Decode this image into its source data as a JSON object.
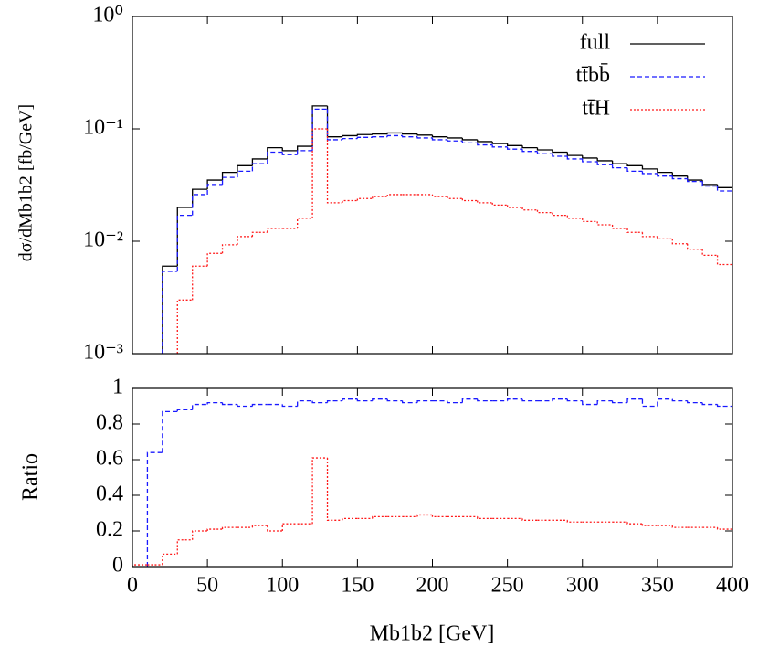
{
  "chart_data": [
    {
      "type": "histogram",
      "ylabel": "dσ/dMb1b2 [fb/GeV]",
      "log_y": true,
      "bins": [
        0,
        10,
        20,
        30,
        40,
        50,
        60,
        70,
        80,
        90,
        100,
        110,
        120,
        130,
        140,
        150,
        160,
        170,
        180,
        190,
        200,
        210,
        220,
        230,
        240,
        250,
        260,
        270,
        280,
        290,
        300,
        310,
        320,
        330,
        340,
        350,
        360,
        370,
        380,
        390,
        400
      ],
      "xlim": [
        0,
        400
      ],
      "ylim": [
        0.001,
        1
      ],
      "yticks": [
        {
          "value": 1,
          "label": "10⁰"
        },
        {
          "value": 0.1,
          "label": "10⁻¹"
        },
        {
          "value": 0.01,
          "label": "10⁻²"
        },
        {
          "value": 0.001,
          "label": "10⁻³"
        }
      ],
      "legend": "upper right",
      "series": [
        {
          "name": "full",
          "color": "#000000",
          "style": "solid",
          "values": [
            null,
            null,
            0.006,
            0.02,
            0.029,
            0.035,
            0.041,
            0.047,
            0.054,
            0.068,
            0.064,
            0.07,
            0.16,
            0.085,
            0.087,
            0.089,
            0.09,
            0.092,
            0.09,
            0.088,
            0.085,
            0.083,
            0.08,
            0.077,
            0.074,
            0.071,
            0.068,
            0.065,
            0.062,
            0.058,
            0.055,
            0.052,
            0.049,
            0.047,
            0.044,
            0.041,
            0.038,
            0.035,
            0.032,
            0.03
          ]
        },
        {
          "name": "tt̄bb̄",
          "color": "#1a1aff",
          "style": "dashed",
          "values": [
            null,
            null,
            0.0054,
            0.017,
            0.026,
            0.032,
            0.037,
            0.042,
            0.049,
            0.062,
            0.059,
            0.064,
            0.15,
            0.08,
            0.082,
            0.084,
            0.085,
            0.087,
            0.085,
            0.083,
            0.08,
            0.078,
            0.075,
            0.072,
            0.069,
            0.066,
            0.063,
            0.06,
            0.057,
            0.054,
            0.051,
            0.048,
            0.045,
            0.042,
            0.04,
            0.038,
            0.036,
            0.034,
            0.031,
            0.028
          ]
        },
        {
          "name": "tt̄H",
          "color": "#ff1a1a",
          "style": "dotted",
          "values": [
            null,
            null,
            null,
            0.003,
            0.006,
            0.0078,
            0.0093,
            0.011,
            0.012,
            0.013,
            0.013,
            0.016,
            0.1,
            0.022,
            0.023,
            0.024,
            0.025,
            0.026,
            0.026,
            0.026,
            0.025,
            0.024,
            0.023,
            0.022,
            0.021,
            0.02,
            0.019,
            0.018,
            0.017,
            0.016,
            0.015,
            0.014,
            0.013,
            0.012,
            0.011,
            0.0105,
            0.0095,
            0.0085,
            0.0075,
            0.0062
          ]
        }
      ]
    },
    {
      "type": "histogram",
      "ylabel": "Ratio",
      "xlabel": "Mb1b2 [GeV]",
      "bins": [
        0,
        10,
        20,
        30,
        40,
        50,
        60,
        70,
        80,
        90,
        100,
        110,
        120,
        130,
        140,
        150,
        160,
        170,
        180,
        190,
        200,
        210,
        220,
        230,
        240,
        250,
        260,
        270,
        280,
        290,
        300,
        310,
        320,
        330,
        340,
        350,
        360,
        370,
        380,
        390,
        400
      ],
      "xlim": [
        0,
        400
      ],
      "ylim": [
        0,
        1
      ],
      "xticks": [
        0,
        50,
        100,
        150,
        200,
        250,
        300,
        350,
        400
      ],
      "yticks": [
        0,
        0.2,
        0.4,
        0.6,
        0.8,
        1
      ],
      "series": [
        {
          "color": "#1a1aff",
          "style": "dashed",
          "values": [
            null,
            0.64,
            0.87,
            0.88,
            0.91,
            0.92,
            0.91,
            0.9,
            0.91,
            0.91,
            0.9,
            0.93,
            0.92,
            0.93,
            0.94,
            0.93,
            0.94,
            0.93,
            0.92,
            0.93,
            0.93,
            0.92,
            0.94,
            0.93,
            0.93,
            0.94,
            0.93,
            0.93,
            0.94,
            0.93,
            0.91,
            0.93,
            0.92,
            0.94,
            0.9,
            0.94,
            0.93,
            0.92,
            0.91,
            0.9
          ]
        },
        {
          "color": "#ff1a1a",
          "style": "dotted",
          "values": [
            0.01,
            0.01,
            0.07,
            0.15,
            0.2,
            0.21,
            0.22,
            0.22,
            0.23,
            0.2,
            0.24,
            0.24,
            0.61,
            0.26,
            0.27,
            0.27,
            0.28,
            0.28,
            0.28,
            0.29,
            0.28,
            0.28,
            0.28,
            0.27,
            0.27,
            0.27,
            0.26,
            0.26,
            0.26,
            0.25,
            0.25,
            0.25,
            0.25,
            0.24,
            0.23,
            0.23,
            0.22,
            0.22,
            0.22,
            0.21
          ]
        }
      ]
    }
  ]
}
